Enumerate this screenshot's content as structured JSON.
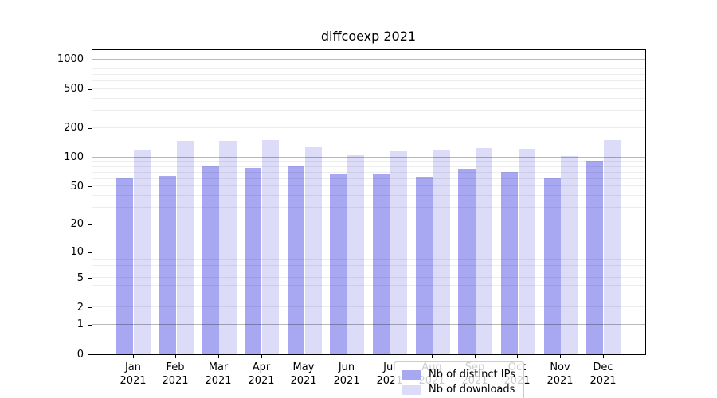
{
  "title": "diffcoexp 2021",
  "chart_data": {
    "type": "bar",
    "title": "diffcoexp 2021",
    "categories": [
      "Jan 2021",
      "Feb 2021",
      "Mar 2021",
      "Apr 2021",
      "May 2021",
      "Jun 2021",
      "Jul 2021",
      "Aug 2021",
      "Sep 2021",
      "Oct 2021",
      "Nov 2021",
      "Dec 2021"
    ],
    "month_labels": [
      "Jan",
      "Feb",
      "Mar",
      "Apr",
      "May",
      "Jun",
      "Jul",
      "Aug",
      "Sep",
      "Oct",
      "Nov",
      "Dec"
    ],
    "year_label": "2021",
    "series": [
      {
        "name": "Nb of distinct IPs",
        "color": "#a8a8f2",
        "values": [
          61,
          64,
          82,
          78,
          82,
          68,
          68,
          63,
          76,
          71,
          61,
          92
        ]
      },
      {
        "name": "Nb of downloads",
        "color": "#dcdcf9",
        "values": [
          121,
          149,
          147,
          152,
          128,
          106,
          115,
          117,
          126,
          122,
          104,
          151
        ]
      }
    ],
    "xlabel": "",
    "ylabel": "",
    "yscale": "log1p",
    "yticks": [
      0,
      1,
      2,
      5,
      10,
      20,
      50,
      100,
      200,
      500,
      1000
    ],
    "ylim": [
      0,
      1270
    ],
    "grid": "horizontal-on-top",
    "legend_position": "lower-center-inside",
    "colors": {
      "ips_bar": "#a8a8f2",
      "downloads_bar": "#dcdcf9",
      "grid_major": "#b9b9b9",
      "grid_minor": "#ebebeb",
      "axis": "#000000",
      "background": "#ffffff"
    }
  }
}
